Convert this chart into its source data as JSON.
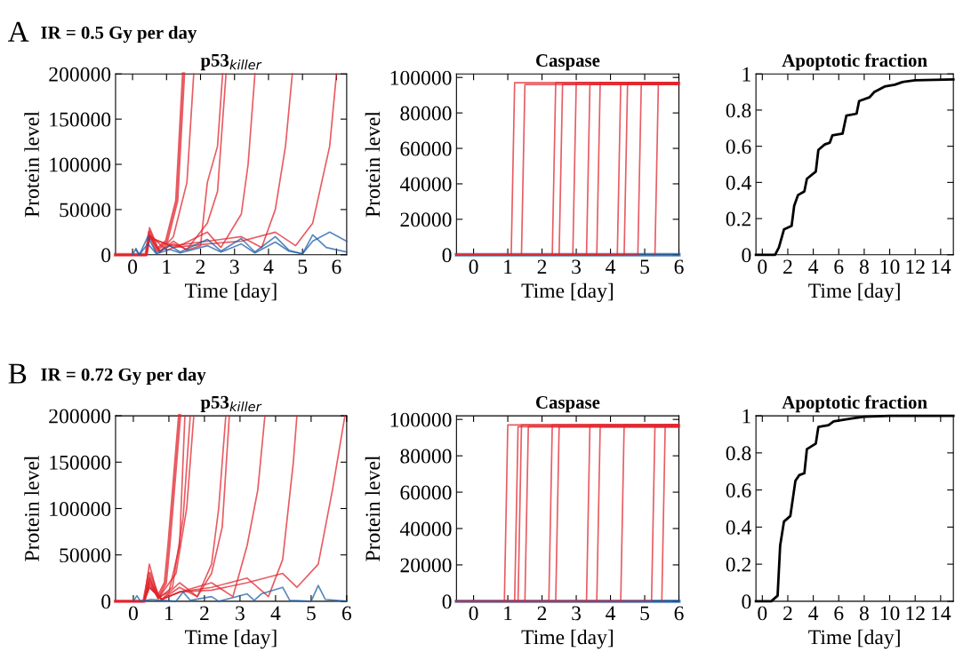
{
  "chart_data": [
    {
      "type": "line",
      "title": "p53$_{killer}$",
      "xlabel": "Time [day]",
      "ylabel": "Protein level",
      "annotations": [
        "A",
        "IR = 0.5 Gy per day"
      ],
      "xlim": [
        -0.5,
        6.3
      ],
      "xticks": [
        0,
        1,
        2,
        3,
        4,
        5,
        6
      ],
      "ylim": [
        0,
        200000
      ],
      "yticks": [
        0,
        50000,
        100000,
        150000,
        200000
      ],
      "series": [
        {
          "color": "#e0262e",
          "x": [
            -0.5,
            0.4,
            0.5,
            0.7,
            1.0,
            1.3,
            1.5
          ],
          "values": [
            0,
            0,
            25000,
            5000,
            15000,
            60000,
            200000
          ]
        },
        {
          "color": "#e0262e",
          "x": [
            -0.5,
            0.4,
            0.5,
            0.8,
            1.2,
            1.6,
            1.8
          ],
          "values": [
            0,
            0,
            30000,
            3000,
            20000,
            80000,
            200000
          ]
        },
        {
          "color": "#e0262e",
          "x": [
            -0.5,
            0.4,
            0.5,
            0.8,
            1.2,
            1.6,
            2.0,
            2.2,
            2.5,
            2.65
          ],
          "values": [
            0,
            0,
            20000,
            3000,
            15000,
            5000,
            10000,
            80000,
            120000,
            200000
          ]
        },
        {
          "color": "#e0262e",
          "x": [
            -0.5,
            0.4,
            0.5,
            0.8,
            1.2,
            1.6,
            2.2,
            2.5,
            2.75
          ],
          "values": [
            0,
            0,
            22000,
            4000,
            12000,
            6000,
            35000,
            70000,
            200000
          ]
        },
        {
          "color": "#e0262e",
          "x": [
            -0.5,
            0.4,
            0.5,
            1.0,
            1.5,
            2.2,
            2.6,
            3.2,
            3.4,
            3.6
          ],
          "values": [
            0,
            0,
            22000,
            5000,
            12000,
            25000,
            8000,
            45000,
            100000,
            200000
          ]
        },
        {
          "color": "#e0262e",
          "x": [
            -0.5,
            0.4,
            0.5,
            1.2,
            2.2,
            3.2,
            3.8,
            4.2,
            4.5,
            4.7
          ],
          "values": [
            0,
            0,
            18000,
            10000,
            15000,
            20000,
            8000,
            50000,
            120000,
            200000
          ]
        },
        {
          "color": "#e0262e",
          "x": [
            -0.5,
            0.4,
            0.5,
            1.2,
            2.2,
            3.2,
            4.2,
            4.8,
            5.3,
            5.8,
            6.0
          ],
          "values": [
            0,
            0,
            20000,
            8000,
            12000,
            15000,
            25000,
            10000,
            35000,
            120000,
            200000
          ]
        },
        {
          "color": "#1f5fa8",
          "x": [
            0,
            0.1,
            0.2,
            0.45,
            0.7,
            1.1,
            1.4,
            2.2,
            2.6,
            3.2,
            3.6,
            4.2,
            4.6,
            5.0,
            5.3,
            5.7,
            6.3
          ],
          "values": [
            0,
            7000,
            0,
            20000,
            2000,
            10000,
            3000,
            17000,
            4000,
            18000,
            3000,
            20000,
            5000,
            1000,
            22000,
            8000,
            3000
          ]
        },
        {
          "color": "#1f5fa8",
          "x": [
            0.1,
            0.2,
            0.45,
            0.7,
            1.1,
            1.4,
            2.2,
            2.6,
            3.2,
            3.6,
            4.2,
            4.6,
            5.0,
            5.3,
            5.8,
            6.3
          ],
          "values": [
            5000,
            0,
            12000,
            1000,
            6000,
            2000,
            10000,
            3000,
            12000,
            2000,
            14000,
            4000,
            1000,
            15000,
            25000,
            15000
          ]
        }
      ]
    },
    {
      "type": "line",
      "title": "Caspase",
      "xlabel": "Time [day]",
      "ylabel": "Protein level",
      "xlim": [
        -0.5,
        6
      ],
      "xticks": [
        0,
        1,
        2,
        3,
        4,
        5,
        6
      ],
      "ylim": [
        0,
        102000
      ],
      "yticks": [
        0,
        20000,
        40000,
        60000,
        80000,
        100000
      ],
      "series": [
        {
          "color": "#1f5fa8",
          "x": [
            -0.5,
            6
          ],
          "values": [
            0,
            0
          ]
        },
        {
          "color": "#e0262e",
          "x": [
            -0.5,
            1.1,
            1.2,
            6
          ],
          "values": [
            0,
            0,
            97000,
            97000
          ]
        },
        {
          "color": "#e0262e",
          "x": [
            -0.5,
            1.4,
            1.5,
            6
          ],
          "values": [
            0,
            0,
            96000,
            96000
          ]
        },
        {
          "color": "#e0262e",
          "x": [
            -0.5,
            2.3,
            2.4,
            6
          ],
          "values": [
            0,
            0,
            97000,
            97000
          ]
        },
        {
          "color": "#e0262e",
          "x": [
            -0.5,
            2.5,
            2.6,
            6
          ],
          "values": [
            0,
            0,
            96000,
            96000
          ]
        },
        {
          "color": "#e0262e",
          "x": [
            -0.5,
            2.9,
            3.0,
            6
          ],
          "values": [
            0,
            0,
            97000,
            97000
          ]
        },
        {
          "color": "#e0262e",
          "x": [
            -0.5,
            3.3,
            3.4,
            6
          ],
          "values": [
            0,
            0,
            96000,
            96000
          ]
        },
        {
          "color": "#e0262e",
          "x": [
            -0.5,
            3.6,
            3.7,
            6
          ],
          "values": [
            0,
            0,
            97000,
            97000
          ]
        },
        {
          "color": "#e0262e",
          "x": [
            -0.5,
            4.2,
            4.3,
            6
          ],
          "values": [
            0,
            0,
            96000,
            96000
          ]
        },
        {
          "color": "#e0262e",
          "x": [
            -0.5,
            4.4,
            4.5,
            6
          ],
          "values": [
            0,
            0,
            97000,
            97000
          ]
        },
        {
          "color": "#e0262e",
          "x": [
            -0.5,
            4.8,
            4.9,
            6
          ],
          "values": [
            0,
            0,
            96000,
            96000
          ]
        },
        {
          "color": "#e0262e",
          "x": [
            5.3,
            5.4,
            6
          ],
          "values": [
            0,
            97000,
            97000
          ]
        }
      ]
    },
    {
      "type": "line",
      "title": "Apoptotic fraction",
      "xlabel": "Time [day]",
      "xlim": [
        -0.5,
        15
      ],
      "xticks": [
        0,
        2,
        4,
        6,
        8,
        10,
        12,
        14
      ],
      "ylim": [
        0,
        1
      ],
      "yticks": [
        0,
        0.2,
        0.4,
        0.6,
        0.8,
        1
      ],
      "series": [
        {
          "color": "#000000",
          "x": [
            -0.5,
            1.0,
            1.3,
            1.7,
            2.3,
            2.5,
            2.8,
            3.3,
            3.5,
            4.2,
            4.4,
            4.9,
            5.3,
            5.5,
            6.3,
            6.6,
            7.4,
            7.6,
            8.4,
            8.8,
            9.6,
            10.4,
            11,
            12,
            15
          ],
          "values": [
            0,
            0,
            0.04,
            0.14,
            0.16,
            0.27,
            0.33,
            0.35,
            0.42,
            0.46,
            0.58,
            0.61,
            0.62,
            0.66,
            0.67,
            0.77,
            0.78,
            0.85,
            0.87,
            0.9,
            0.93,
            0.94,
            0.955,
            0.965,
            0.97
          ]
        }
      ]
    },
    {
      "type": "line",
      "title": "p53$_{killer}$",
      "xlabel": "Time [day]",
      "ylabel": "Protein level",
      "annotations": [
        "B",
        "IR = 0.72 Gy per day"
      ],
      "xlim": [
        -0.5,
        6
      ],
      "xticks": [
        0,
        1,
        2,
        3,
        4,
        5,
        6
      ],
      "ylim": [
        0,
        200000
      ],
      "yticks": [
        0,
        50000,
        100000,
        150000,
        200000
      ],
      "series": [
        {
          "color": "#e0262e",
          "x": [
            -0.5,
            0.3,
            0.45,
            0.7,
            0.9,
            1.0,
            1.3
          ],
          "values": [
            0,
            0,
            30000,
            5000,
            20000,
            60000,
            200000
          ]
        },
        {
          "color": "#e0262e",
          "x": [
            -0.5,
            0.3,
            0.45,
            0.7,
            1.0,
            1.3,
            1.45
          ],
          "values": [
            0,
            0,
            40000,
            4000,
            10000,
            60000,
            200000
          ]
        },
        {
          "color": "#e0262e",
          "x": [
            -0.5,
            0.3,
            0.45,
            0.7,
            1.1,
            1.4,
            1.6
          ],
          "values": [
            0,
            0,
            25000,
            3000,
            15000,
            90000,
            200000
          ]
        },
        {
          "color": "#e0262e",
          "x": [
            -0.5,
            0.3,
            0.45,
            0.7,
            1.2,
            1.5,
            1.7
          ],
          "values": [
            0,
            0,
            20000,
            3000,
            30000,
            100000,
            200000
          ]
        },
        {
          "color": "#e0262e",
          "x": [
            -0.5,
            0.3,
            0.45,
            0.8,
            1.3,
            1.8,
            2.2,
            2.4,
            2.6
          ],
          "values": [
            0,
            0,
            18000,
            2000,
            20000,
            5000,
            40000,
            100000,
            200000
          ]
        },
        {
          "color": "#e0262e",
          "x": [
            -0.5,
            0.3,
            0.45,
            0.8,
            1.3,
            1.8,
            2.2,
            2.5,
            2.7
          ],
          "values": [
            0,
            0,
            22000,
            2000,
            15000,
            5000,
            30000,
            80000,
            200000
          ]
        },
        {
          "color": "#e0262e",
          "x": [
            -0.5,
            0.3,
            0.45,
            0.8,
            1.3,
            2.2,
            2.8,
            3.2,
            3.5,
            3.7
          ],
          "values": [
            0,
            0,
            15000,
            2000,
            10000,
            20000,
            5000,
            60000,
            120000,
            200000
          ]
        },
        {
          "color": "#e0262e",
          "x": [
            -0.5,
            0.3,
            0.45,
            0.8,
            1.3,
            2.2,
            3.2,
            3.8,
            4.2,
            4.5,
            4.6
          ],
          "values": [
            0,
            0,
            15000,
            2000,
            10000,
            15000,
            25000,
            5000,
            45000,
            150000,
            200000
          ]
        },
        {
          "color": "#e0262e",
          "x": [
            -0.5,
            0.3,
            0.45,
            0.8,
            1.3,
            2.2,
            3.2,
            4.2,
            4.6,
            5.2,
            5.6,
            5.95
          ],
          "values": [
            0,
            0,
            15000,
            2000,
            10000,
            12000,
            20000,
            30000,
            15000,
            40000,
            120000,
            200000
          ]
        },
        {
          "color": "#1f5fa8",
          "x": [
            0,
            0.1,
            0.2,
            0.5,
            1.2,
            1.4,
            1.6,
            2.2,
            2.4,
            3.2,
            3.4,
            3.6,
            4.2,
            4.4,
            5.0,
            5.2,
            5.4,
            6.0
          ],
          "values": [
            0,
            6000,
            0,
            2000,
            0,
            10000,
            1000,
            5000,
            0,
            8000,
            1000,
            8000,
            15000,
            1000,
            0,
            17000,
            2000,
            0
          ]
        }
      ]
    },
    {
      "type": "line",
      "title": "Caspase",
      "xlabel": "Time [day]",
      "ylabel": "Protein level",
      "xlim": [
        -0.5,
        6
      ],
      "xticks": [
        0,
        1,
        2,
        3,
        4,
        5,
        6
      ],
      "ylim": [
        0,
        102000
      ],
      "yticks": [
        0,
        20000,
        40000,
        60000,
        80000,
        100000
      ],
      "series": [
        {
          "color": "#1f5fa8",
          "x": [
            -0.5,
            6
          ],
          "values": [
            0,
            0
          ]
        },
        {
          "color": "#e0262e",
          "x": [
            -0.5,
            0.9,
            1.0,
            6
          ],
          "values": [
            0,
            0,
            97000,
            97000
          ]
        },
        {
          "color": "#e0262e",
          "x": [
            -0.5,
            1.2,
            1.3,
            6
          ],
          "values": [
            0,
            0,
            96000,
            96000
          ]
        },
        {
          "color": "#e0262e",
          "x": [
            -0.5,
            1.3,
            1.4,
            6
          ],
          "values": [
            0,
            0,
            97000,
            97000
          ]
        },
        {
          "color": "#e0262e",
          "x": [
            -0.5,
            1.5,
            1.6,
            6
          ],
          "values": [
            0,
            0,
            96000,
            96000
          ]
        },
        {
          "color": "#e0262e",
          "x": [
            -0.5,
            2.2,
            2.3,
            6
          ],
          "values": [
            0,
            0,
            97000,
            97000
          ]
        },
        {
          "color": "#e0262e",
          "x": [
            -0.5,
            2.4,
            2.5,
            6
          ],
          "values": [
            0,
            0,
            96000,
            96000
          ]
        },
        {
          "color": "#e0262e",
          "x": [
            -0.5,
            3.3,
            3.4,
            6
          ],
          "values": [
            0,
            0,
            97000,
            97000
          ]
        },
        {
          "color": "#e0262e",
          "x": [
            -0.5,
            3.6,
            3.7,
            6
          ],
          "values": [
            0,
            0,
            96000,
            96000
          ]
        },
        {
          "color": "#e0262e",
          "x": [
            -0.5,
            4.3,
            4.4,
            6
          ],
          "values": [
            0,
            0,
            97000,
            97000
          ]
        },
        {
          "color": "#e0262e",
          "x": [
            -0.5,
            5.2,
            5.3,
            6
          ],
          "values": [
            0,
            0,
            96000,
            96000
          ]
        },
        {
          "color": "#e0262e",
          "x": [
            5.5,
            5.6,
            6
          ],
          "values": [
            0,
            97000,
            97000
          ]
        }
      ]
    },
    {
      "type": "line",
      "title": "Apoptotic fraction",
      "xlabel": "Time [day]",
      "xlim": [
        -0.5,
        15
      ],
      "xticks": [
        0,
        2,
        4,
        6,
        8,
        10,
        12,
        14
      ],
      "ylim": [
        0,
        1
      ],
      "yticks": [
        0,
        0.2,
        0.4,
        0.6,
        0.8,
        1
      ],
      "series": [
        {
          "color": "#000000",
          "x": [
            -0.5,
            0.7,
            1.2,
            1.4,
            1.7,
            2.2,
            2.6,
            2.9,
            3.3,
            3.5,
            4.2,
            4.4,
            5.2,
            5.6,
            7,
            8,
            10,
            15
          ],
          "values": [
            0,
            0,
            0.03,
            0.3,
            0.43,
            0.46,
            0.65,
            0.68,
            0.69,
            0.82,
            0.85,
            0.94,
            0.95,
            0.97,
            0.985,
            0.995,
            1,
            1
          ]
        }
      ]
    }
  ]
}
